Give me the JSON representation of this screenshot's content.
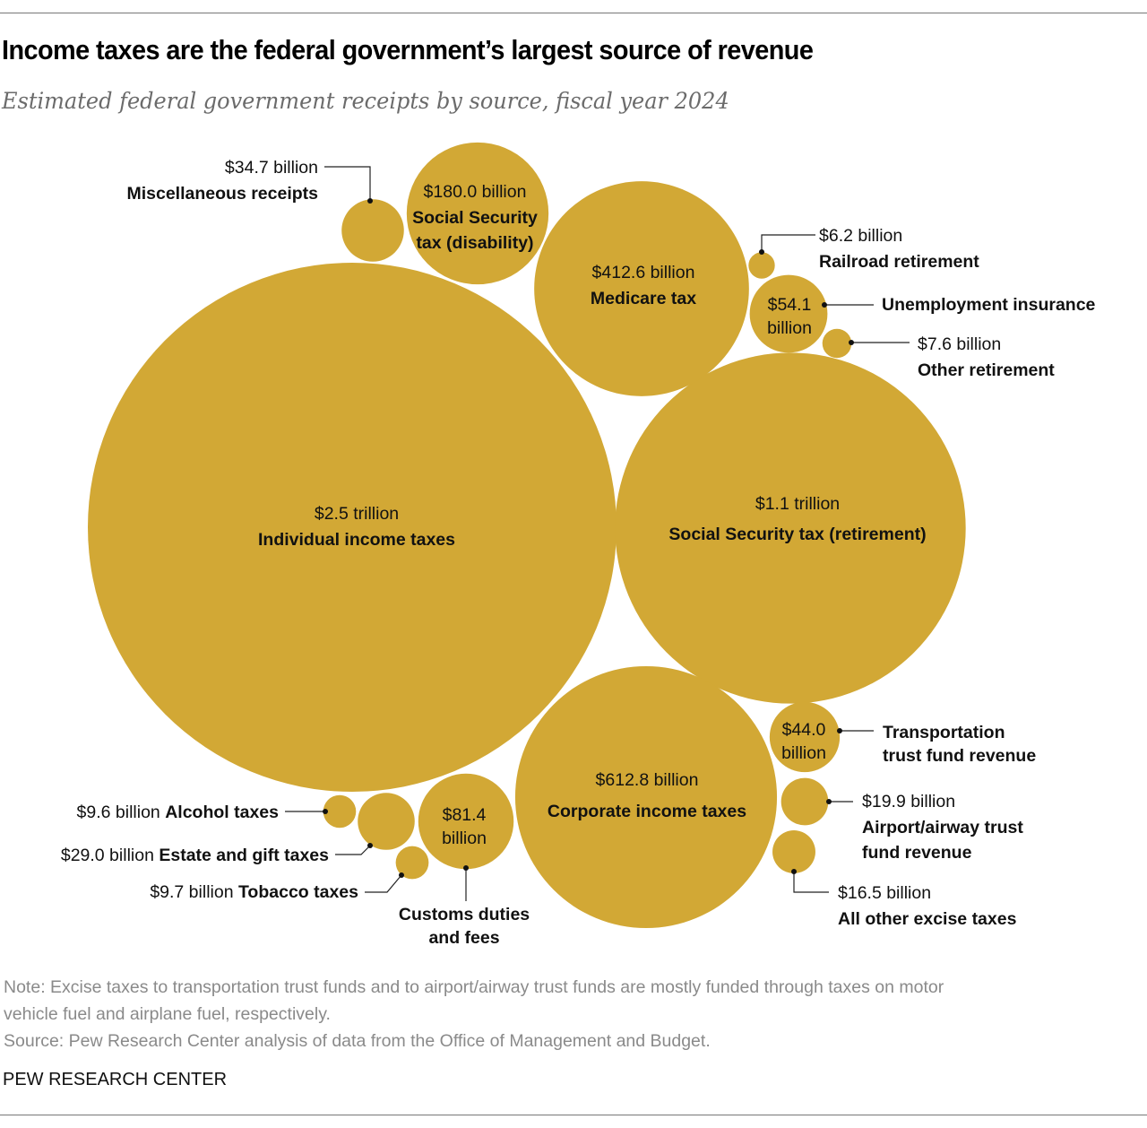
{
  "title": "Income taxes are the federal government’s largest source of revenue",
  "subtitle": "Estimated federal government receipts by source, fiscal year 2024",
  "chart_data": {
    "type": "bubble",
    "title": "Income taxes are the federal government’s largest source of revenue",
    "subtitle": "Estimated federal government receipts by source, fiscal year 2024",
    "unit": "billion USD",
    "color": "#D2A835",
    "items": [
      {
        "id": "individual",
        "name": "Individual income taxes",
        "value": 2500,
        "label": "$2.5 trillion"
      },
      {
        "id": "ssret",
        "name": "Social Security tax (retirement)",
        "value": 1100,
        "label": "$1.1 trillion"
      },
      {
        "id": "corporate",
        "name": "Corporate income taxes",
        "value": 612.8,
        "label": "$612.8 billion"
      },
      {
        "id": "medicare",
        "name": "Medicare tax",
        "value": 412.6,
        "label": "$412.6 billion"
      },
      {
        "id": "ssdis",
        "name": "Social Security tax (disability)",
        "name_lines": [
          "Social Security",
          "tax (disability)"
        ],
        "value": 180.0,
        "label": "$180.0 billion"
      },
      {
        "id": "customs",
        "name": "Customs duties and fees",
        "name_lines": [
          "Customs duties",
          "and fees"
        ],
        "value": 81.4,
        "label": "$81.4",
        "label2": "billion"
      },
      {
        "id": "unemployment",
        "name": "Unemployment insurance",
        "value": 54.1,
        "label": "$54.1",
        "label2": "billion"
      },
      {
        "id": "transport",
        "name": "Transportation trust fund revenue",
        "name_lines": [
          "Transportation",
          "trust fund revenue"
        ],
        "value": 44.0,
        "label": "$44.0",
        "label2": "billion"
      },
      {
        "id": "misc",
        "name": "Miscellaneous receipts",
        "value": 34.7,
        "label": "$34.7 billion"
      },
      {
        "id": "estate",
        "name": "Estate and gift taxes",
        "value": 29.0,
        "label": "$29.0 billion"
      },
      {
        "id": "airport",
        "name": "Airport/airway trust fund revenue",
        "name_lines": [
          "Airport/airway trust",
          "fund revenue"
        ],
        "value": 19.9,
        "label": "$19.9 billion"
      },
      {
        "id": "excise",
        "name": "All other excise taxes",
        "value": 16.5,
        "label": "$16.5 billion"
      },
      {
        "id": "tobacco",
        "name": "Tobacco taxes",
        "value": 9.7,
        "label": "$9.7 billion"
      },
      {
        "id": "alcohol",
        "name": "Alcohol taxes",
        "value": 9.6,
        "label": "$9.6 billion"
      },
      {
        "id": "otherret",
        "name": "Other retirement",
        "value": 7.6,
        "label": "$7.6 billion"
      },
      {
        "id": "railroad",
        "name": "Railroad retirement",
        "value": 6.2,
        "label": "$6.2 billion"
      }
    ]
  },
  "notes": {
    "note_line1": "Note: Excise taxes to transportation trust funds and to airport/airway trust funds are mostly funded through taxes on motor",
    "note_line2": "vehicle fuel and airplane fuel, respectively.",
    "source": "Source: Pew Research Center analysis of data from the Office of Management and Budget."
  },
  "brand": "PEW RESEARCH CENTER"
}
